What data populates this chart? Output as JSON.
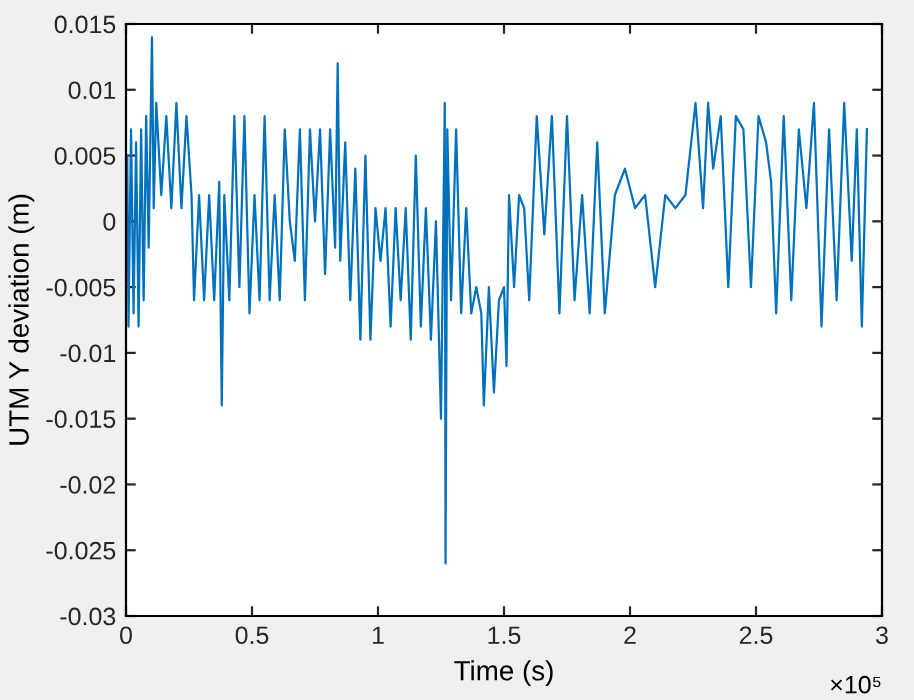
{
  "chart_data": {
    "type": "line",
    "xlabel": "Time (s)",
    "ylabel": "UTM Y deviation (m)",
    "xlim": [
      0,
      3
    ],
    "ylim": [
      -0.03,
      0.015
    ],
    "xticks": [
      0,
      0.5,
      1,
      1.5,
      2,
      2.5,
      3
    ],
    "yticks": [
      -0.03,
      -0.025,
      -0.02,
      -0.015,
      -0.01,
      -0.005,
      0,
      0.005,
      0.01,
      0.015
    ],
    "annotations": [
      "×10⁵"
    ],
    "grid": false,
    "legend": false,
    "marker": "none",
    "line_style": "solid",
    "series": [
      {
        "color": "#0072bd",
        "x": [
          0,
          0.005,
          0.01,
          0.02,
          0.03,
          0.04,
          0.05,
          0.06,
          0.07,
          0.08,
          0.09,
          0.103,
          0.11,
          0.12,
          0.14,
          0.16,
          0.18,
          0.2,
          0.22,
          0.24,
          0.26,
          0.27,
          0.29,
          0.31,
          0.33,
          0.35,
          0.37,
          0.38,
          0.39,
          0.41,
          0.43,
          0.45,
          0.47,
          0.49,
          0.51,
          0.53,
          0.55,
          0.57,
          0.59,
          0.61,
          0.63,
          0.65,
          0.67,
          0.69,
          0.71,
          0.73,
          0.75,
          0.77,
          0.79,
          0.81,
          0.83,
          0.84,
          0.85,
          0.87,
          0.89,
          0.91,
          0.93,
          0.95,
          0.97,
          0.99,
          1.01,
          1.03,
          1.05,
          1.07,
          1.09,
          1.11,
          1.13,
          1.15,
          1.17,
          1.19,
          1.21,
          1.23,
          1.25,
          1.265,
          1.268,
          1.275,
          1.29,
          1.31,
          1.33,
          1.35,
          1.37,
          1.39,
          1.41,
          1.42,
          1.44,
          1.46,
          1.48,
          1.5,
          1.51,
          1.52,
          1.54,
          1.56,
          1.58,
          1.6,
          1.63,
          1.66,
          1.69,
          1.72,
          1.75,
          1.78,
          1.81,
          1.84,
          1.87,
          1.9,
          1.94,
          1.98,
          2.02,
          2.06,
          2.1,
          2.14,
          2.18,
          2.22,
          2.26,
          2.29,
          2.31,
          2.33,
          2.36,
          2.39,
          2.42,
          2.45,
          2.48,
          2.51,
          2.54,
          2.56,
          2.58,
          2.61,
          2.64,
          2.67,
          2.7,
          2.73,
          2.76,
          2.79,
          2.82,
          2.85,
          2.88,
          2.9,
          2.92,
          2.94
        ],
        "values": [
          -0.002,
          0.005,
          -0.008,
          0.007,
          -0.007,
          0.006,
          -0.008,
          0.007,
          -0.006,
          0.008,
          -0.002,
          0.014,
          0.001,
          0.009,
          0.002,
          0.008,
          0.001,
          0.009,
          0.001,
          0.008,
          0.002,
          -0.006,
          0.002,
          -0.006,
          0.002,
          -0.006,
          0.003,
          -0.014,
          0.002,
          -0.006,
          0.008,
          -0.005,
          0.008,
          -0.007,
          0.002,
          -0.006,
          0.008,
          -0.006,
          0.002,
          -0.006,
          0.007,
          0,
          -0.003,
          0.007,
          -0.006,
          0.007,
          0,
          0.007,
          -0.004,
          0.007,
          -0.002,
          0.012,
          -0.003,
          0.006,
          -0.006,
          0.004,
          -0.009,
          0.005,
          -0.009,
          0.001,
          -0.003,
          0.001,
          -0.008,
          0.001,
          -0.006,
          0.001,
          -0.009,
          0.005,
          -0.008,
          0.001,
          -0.009,
          0,
          -0.015,
          0.009,
          -0.026,
          0.007,
          -0.006,
          0.007,
          -0.007,
          0.001,
          -0.007,
          -0.005,
          -0.007,
          -0.014,
          -0.005,
          -0.013,
          -0.006,
          -0.005,
          -0.011,
          0.002,
          -0.005,
          0.002,
          0.001,
          -0.006,
          0.008,
          -0.001,
          0.008,
          -0.007,
          0.008,
          -0.006,
          0.002,
          -0.007,
          0.006,
          -0.007,
          0.002,
          0.004,
          0.001,
          0.002,
          -0.005,
          0.002,
          0.001,
          0.002,
          0.009,
          0.001,
          0.009,
          0.004,
          0.008,
          -0.005,
          0.008,
          0.007,
          -0.005,
          0.008,
          0.006,
          0.003,
          -0.007,
          0.008,
          -0.006,
          0.007,
          0.001,
          0.009,
          -0.008,
          0.007,
          -0.006,
          0.009,
          -0.003,
          0.007,
          -0.008,
          0.007
        ]
      }
    ]
  }
}
